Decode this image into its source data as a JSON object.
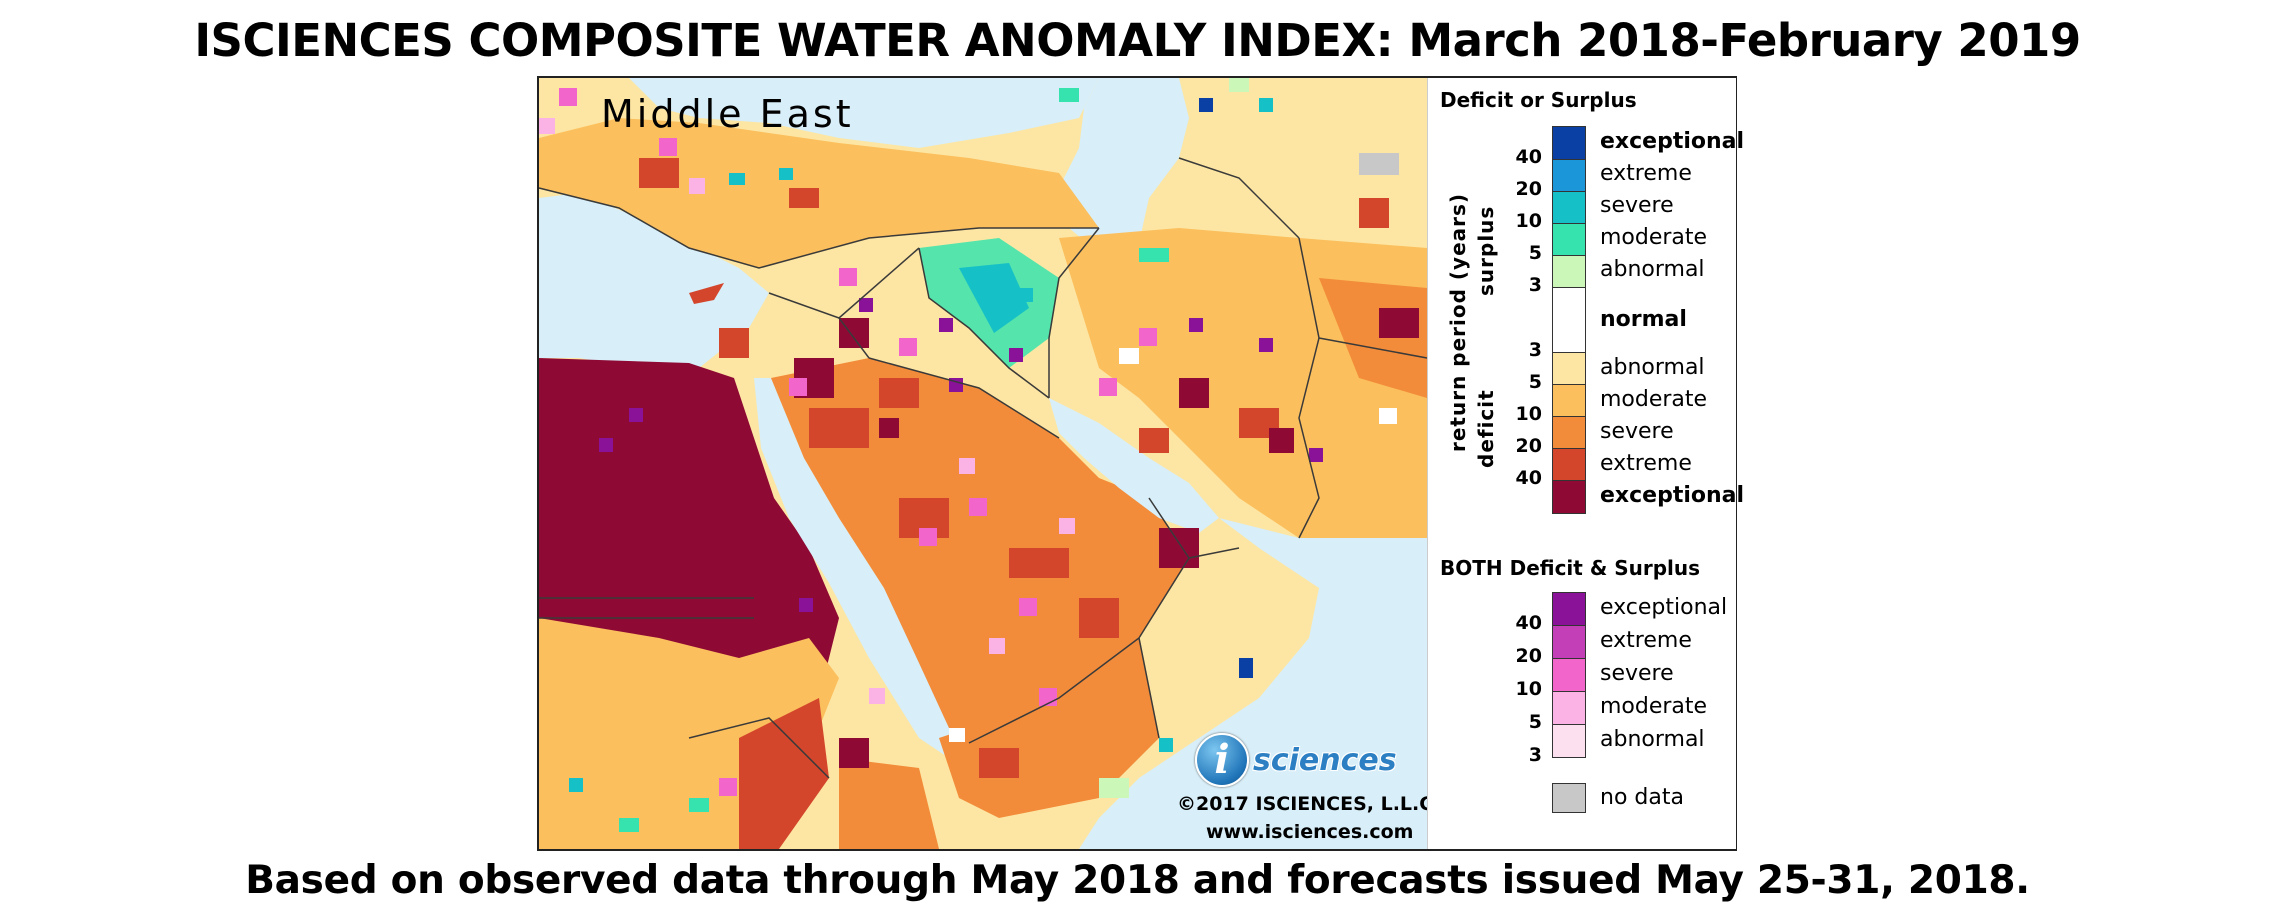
{
  "title": "ISCIENCES COMPOSITE WATER ANOMALY INDEX: March 2018-February 2019",
  "caption": "Based on observed data through May 2018 and forecasts issued May 25-31, 2018.",
  "map": {
    "region_label": "Middle East",
    "logo_mark": "i",
    "logo_text": "sciences",
    "copyright": "©2017 ISCIENCES, L.L.C.",
    "website": "www.isciences.com"
  },
  "legend": {
    "heading_main": "Deficit or Surplus",
    "axis_label": "return period (years)",
    "surplus_label": "surplus",
    "deficit_label": "deficit",
    "surplus_categories": [
      {
        "label": "exceptional",
        "color": "#0a3fa3",
        "bold": true
      },
      {
        "label": "extreme",
        "color": "#1a96d9",
        "bold": false
      },
      {
        "label": "severe",
        "color": "#16c0c7",
        "bold": false
      },
      {
        "label": "moderate",
        "color": "#36e3ae",
        "bold": false
      },
      {
        "label": "abnormal",
        "color": "#cbf7b8",
        "bold": false
      }
    ],
    "normal": {
      "label": "normal",
      "color": "#ffffff"
    },
    "deficit_categories": [
      {
        "label": "abnormal",
        "color": "#fde6a3",
        "bold": false
      },
      {
        "label": "moderate",
        "color": "#fbbf5d",
        "bold": false
      },
      {
        "label": "severe",
        "color": "#f28c3a",
        "bold": false
      },
      {
        "label": "extreme",
        "color": "#d4462c",
        "bold": false
      },
      {
        "label": "exceptional",
        "color": "#8e0a35",
        "bold": true
      }
    ],
    "surplus_ticks": [
      "40",
      "20",
      "10",
      "5",
      "3"
    ],
    "deficit_ticks": [
      "3",
      "5",
      "10",
      "20",
      "40"
    ],
    "heading_both": "BOTH Deficit & Surplus",
    "both_categories": [
      {
        "label": "exceptional",
        "color": "#8a1299"
      },
      {
        "label": "extreme",
        "color": "#c23fb8"
      },
      {
        "label": "severe",
        "color": "#f266cc"
      },
      {
        "label": "moderate",
        "color": "#fbb3e6"
      },
      {
        "label": "abnormal",
        "color": "#fde0f0"
      }
    ],
    "both_ticks": [
      "40",
      "20",
      "10",
      "5",
      "3"
    ],
    "no_data": {
      "label": "no data",
      "color": "#c8c8c8"
    }
  }
}
